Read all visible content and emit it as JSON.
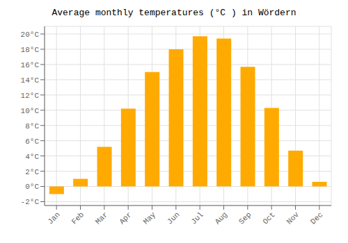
{
  "chart_data": {
    "type": "bar",
    "title": "Average monthly temperatures (°C ) in Wördern",
    "categories": [
      "Jan",
      "Feb",
      "Mar",
      "Apr",
      "May",
      "Jun",
      "Jul",
      "Aug",
      "Sep",
      "Oct",
      "Nov",
      "Dec"
    ],
    "values": [
      -1.0,
      1.0,
      5.2,
      10.2,
      15.0,
      18.0,
      19.7,
      19.4,
      15.7,
      10.3,
      4.7,
      0.6
    ],
    "color": "#FFAA00",
    "ylim": [
      -2.5,
      21
    ],
    "yticks": [
      {
        "value": -2,
        "label": "-2°C"
      },
      {
        "value": 0,
        "label": "0°C"
      },
      {
        "value": 2,
        "label": "2°C"
      },
      {
        "value": 4,
        "label": "4°C"
      },
      {
        "value": 6,
        "label": "6°C"
      },
      {
        "value": 8,
        "label": "8°C"
      },
      {
        "value": 10,
        "label": "10°C"
      },
      {
        "value": 12,
        "label": "12°C"
      },
      {
        "value": 14,
        "label": "14°C"
      },
      {
        "value": 16,
        "label": "16°C"
      },
      {
        "value": 18,
        "label": "18°C"
      },
      {
        "value": 20,
        "label": "20°C"
      }
    ],
    "grid": true
  }
}
